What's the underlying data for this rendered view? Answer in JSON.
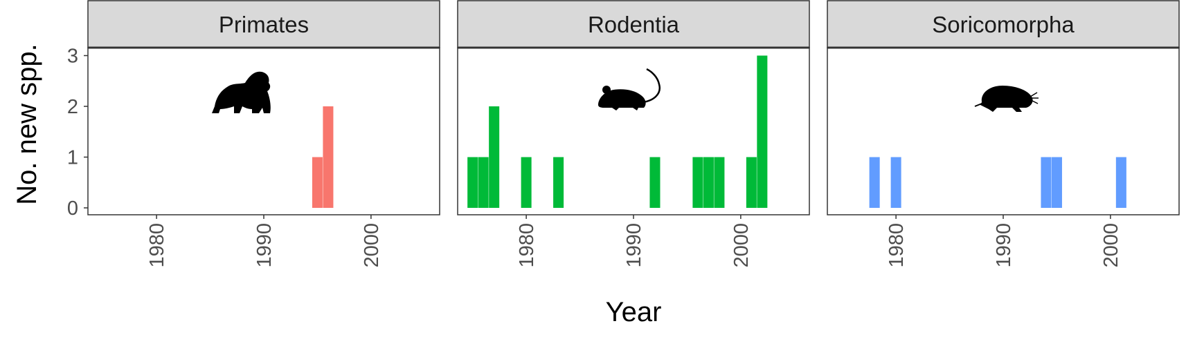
{
  "chart_data": {
    "type": "bar",
    "layout": "facets",
    "xlabel": "Year",
    "ylabel": "No. new spp.",
    "x_ticks": [
      1980,
      1990,
      2000
    ],
    "y_ticks": [
      0,
      1,
      2,
      3
    ],
    "xlim": [
      1973.6,
      2006.4
    ],
    "ylim": [
      0,
      3.15
    ],
    "grid": false,
    "legend": "none",
    "panels": [
      {
        "title": "Primates",
        "color": "#F8766D",
        "silhouette": "gorilla-icon",
        "x": [
          1995,
          1996
        ],
        "values": [
          1,
          2
        ]
      },
      {
        "title": "Rodentia",
        "color": "#00BA38",
        "silhouette": "mouse-icon",
        "x": [
          1975,
          1976,
          1977,
          1980,
          1983,
          1992,
          1996,
          1997,
          1998,
          2001,
          2002
        ],
        "values": [
          1,
          1,
          2,
          1,
          1,
          1,
          1,
          1,
          1,
          1,
          3
        ]
      },
      {
        "title": "Soricomorpha",
        "color": "#619CFF",
        "silhouette": "mole-icon",
        "x": [
          1978,
          1980,
          1994,
          1995,
          2001
        ],
        "values": [
          1,
          1,
          1,
          1,
          1
        ]
      }
    ]
  }
}
